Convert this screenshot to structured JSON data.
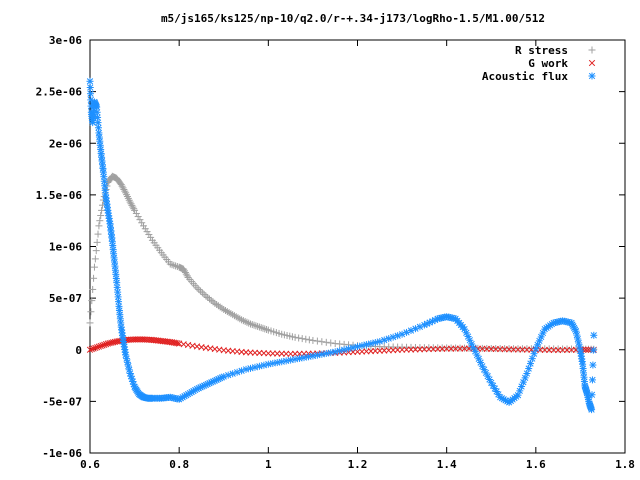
{
  "chart_data": {
    "type": "scatter",
    "title": "m5/js165/ks125/np-10/q2.0/r-+.34-j173/logRho-1.5/M1.00/512",
    "xlabel": "",
    "ylabel": "",
    "xlim": [
      0.6,
      1.8
    ],
    "ylim": [
      -1e-06,
      3e-06
    ],
    "grid": false,
    "legend_position": "top-right",
    "x_ticks": [
      {
        "value": 0.6,
        "label": "0.6"
      },
      {
        "value": 0.8,
        "label": "0.8"
      },
      {
        "value": 1.0,
        "label": "1"
      },
      {
        "value": 1.2,
        "label": "1.2"
      },
      {
        "value": 1.4,
        "label": "1.4"
      },
      {
        "value": 1.6,
        "label": "1.6"
      },
      {
        "value": 1.8,
        "label": "1.8"
      }
    ],
    "y_ticks": [
      {
        "value": -1e-06,
        "label": "-1e-06"
      },
      {
        "value": -5e-07,
        "label": "-5e-07"
      },
      {
        "value": 0,
        "label": "0"
      },
      {
        "value": 5e-07,
        "label": "5e-07"
      },
      {
        "value": 1e-06,
        "label": "1e-06"
      },
      {
        "value": 1.5e-06,
        "label": "1.5e-06"
      },
      {
        "value": 2e-06,
        "label": "2e-06"
      },
      {
        "value": 2.5e-06,
        "label": "2.5e-06"
      },
      {
        "value": 3e-06,
        "label": "3e-06"
      }
    ],
    "series": [
      {
        "name": "R stress",
        "marker": "plus",
        "color": "#a0a0a0",
        "x": [
          0.6,
          0.61,
          0.62,
          0.63,
          0.64,
          0.65,
          0.66,
          0.67,
          0.68,
          0.69,
          0.7,
          0.72,
          0.74,
          0.76,
          0.78,
          0.8,
          0.81,
          0.82,
          0.84,
          0.86,
          0.88,
          0.9,
          0.92,
          0.94,
          0.96,
          0.98,
          1.0,
          1.03,
          1.06,
          1.1,
          1.15,
          1.2,
          1.25,
          1.3,
          1.35,
          1.4,
          1.45,
          1.5,
          1.55,
          1.6,
          1.65,
          1.7,
          1.73
        ],
        "y": [
          2.6e-07,
          8e-07,
          1.2e-06,
          1.45e-06,
          1.62e-06,
          1.68e-06,
          1.66e-06,
          1.6e-06,
          1.52e-06,
          1.43e-06,
          1.35e-06,
          1.2e-06,
          1.06e-06,
          9.4e-07,
          8.3e-07,
          8e-07,
          7.8e-07,
          7e-07,
          6e-07,
          5.2e-07,
          4.5e-07,
          3.9e-07,
          3.4e-07,
          2.9e-07,
          2.5e-07,
          2.2e-07,
          1.9e-07,
          1.5e-07,
          1.2e-07,
          9e-08,
          6e-08,
          4e-08,
          3e-08,
          2.5e-08,
          2e-08,
          1.8e-08,
          1.5e-08,
          1.2e-08,
          1e-08,
          1e-08,
          8e-09,
          6e-09,
          5e-09
        ]
      },
      {
        "name": "G work",
        "marker": "cross",
        "color": "#e02020",
        "x": [
          0.6,
          0.62,
          0.64,
          0.66,
          0.68,
          0.7,
          0.72,
          0.74,
          0.76,
          0.78,
          0.8,
          0.85,
          0.9,
          0.95,
          1.0,
          1.05,
          1.1,
          1.15,
          1.2,
          1.25,
          1.3,
          1.35,
          1.4,
          1.45,
          1.5,
          1.55,
          1.6,
          1.65,
          1.7,
          1.73
        ],
        "y": [
          0,
          3e-08,
          6e-08,
          8e-08,
          9.5e-08,
          1e-07,
          1e-07,
          9.5e-08,
          8.5e-08,
          7.5e-08,
          6e-08,
          2.5e-08,
          -5e-09,
          -2.5e-08,
          -3.5e-08,
          -4e-08,
          -3.8e-08,
          -3e-08,
          -2e-08,
          -1e-08,
          0,
          5e-09,
          1e-08,
          1.2e-08,
          8e-09,
          3e-09,
          0,
          -3e-09,
          0,
          0
        ]
      },
      {
        "name": "Acoustic flux",
        "marker": "star",
        "color": "#1e90ff",
        "x": [
          0.6,
          0.603,
          0.606,
          0.61,
          0.615,
          0.62,
          0.625,
          0.63,
          0.635,
          0.64,
          0.645,
          0.65,
          0.655,
          0.66,
          0.665,
          0.67,
          0.675,
          0.68,
          0.69,
          0.7,
          0.71,
          0.72,
          0.73,
          0.74,
          0.76,
          0.78,
          0.8,
          0.82,
          0.84,
          0.86,
          0.88,
          0.9,
          0.95,
          1.0,
          1.05,
          1.1,
          1.15,
          1.2,
          1.25,
          1.3,
          1.35,
          1.38,
          1.4,
          1.42,
          1.44,
          1.46,
          1.48,
          1.5,
          1.52,
          1.54,
          1.56,
          1.58,
          1.6,
          1.62,
          1.64,
          1.66,
          1.68,
          1.69,
          1.7,
          1.705,
          1.71,
          1.715,
          1.72,
          1.725,
          1.73
        ],
        "y": [
          2.6e-06,
          2.3e-06,
          2.2e-06,
          2.4e-06,
          2.35e-06,
          2.1e-06,
          1.9e-06,
          1.72e-06,
          1.5e-06,
          1.35e-06,
          1.22e-06,
          1.05e-06,
          8.5e-07,
          6.5e-07,
          4.2e-07,
          2.2e-07,
          8e-08,
          -5e-08,
          -2.3e-07,
          -3.6e-07,
          -4.3e-07,
          -4.6e-07,
          -4.7e-07,
          -4.7e-07,
          -4.7e-07,
          -4.6e-07,
          -4.8e-07,
          -4.3e-07,
          -3.8e-07,
          -3.4e-07,
          -3e-07,
          -2.6e-07,
          -1.9e-07,
          -1.4e-07,
          -1e-07,
          -6e-08,
          -2e-08,
          3e-08,
          8e-08,
          1.5e-07,
          2.4e-07,
          3e-07,
          3.2e-07,
          3e-07,
          2e-07,
          2e-08,
          -1.6e-07,
          -3.2e-07,
          -4.6e-07,
          -5.1e-07,
          -4.4e-07,
          -2.3e-07,
          1e-08,
          2e-07,
          2.6e-07,
          2.8e-07,
          2.6e-07,
          1.8e-07,
          -1e-08,
          -1.4e-07,
          -3.5e-07,
          -4.2e-07,
          -5.2e-07,
          -5.8e-07,
          1.4e-07
        ]
      }
    ]
  }
}
